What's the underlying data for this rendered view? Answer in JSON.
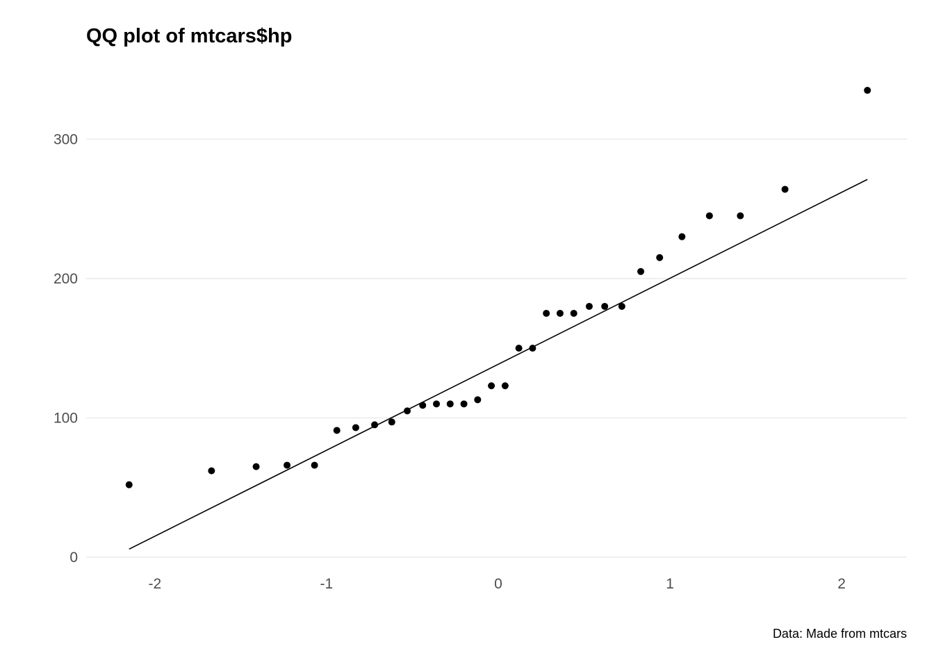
{
  "chart_data": {
    "type": "scatter",
    "title": "QQ plot of mtcars$hp",
    "subtitle": "",
    "xlabel": "",
    "ylabel": "",
    "caption": "Data: Made from mtcars",
    "xlim": [
      -2.4,
      2.38
    ],
    "ylim": [
      -5,
      345
    ],
    "x_ticks": [
      -2,
      -1,
      0,
      1,
      2
    ],
    "x_tick_labels": [
      "-2",
      "-1",
      "0",
      "1",
      "2"
    ],
    "y_ticks": [
      0,
      100,
      200,
      300
    ],
    "y_tick_labels": [
      "0",
      "100",
      "200",
      "300"
    ],
    "grid": "major horizontal",
    "legend": "none",
    "point_color": "#000000",
    "line_color": "#000000",
    "gridline_color": "#ebebeb",
    "series": [
      {
        "x": [
          -2.15,
          -1.67,
          -1.41,
          -1.23,
          -1.07,
          -0.94,
          -0.83,
          -0.72,
          -0.62,
          -0.53,
          -0.44,
          -0.36,
          -0.28,
          -0.2,
          -0.12,
          -0.04,
          0.04,
          0.12,
          0.2,
          0.28,
          0.36,
          0.44,
          0.53,
          0.62,
          0.72,
          0.83,
          0.94,
          1.07,
          1.23,
          1.41,
          1.67,
          2.15
        ],
        "y": [
          52,
          62,
          65,
          66,
          66,
          91,
          93,
          95,
          97,
          105,
          109,
          110,
          110,
          110,
          113,
          123,
          123,
          150,
          150,
          175,
          175,
          175,
          180,
          180,
          180,
          205,
          215,
          230,
          245,
          245,
          264,
          335
        ]
      }
    ],
    "reference_line": {
      "x": [
        -2.15,
        2.15
      ],
      "y": [
        5.8,
        271.1
      ]
    }
  }
}
